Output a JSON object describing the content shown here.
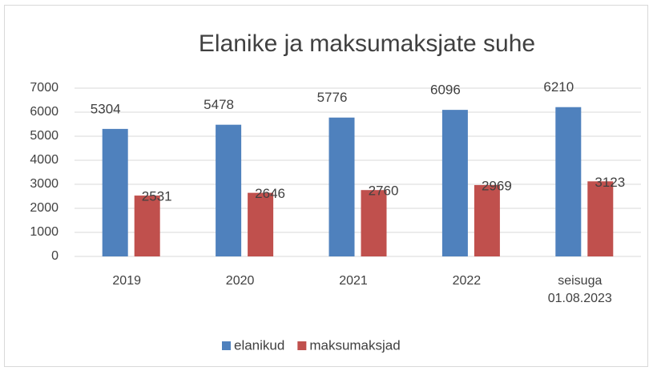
{
  "chart_data": {
    "type": "bar",
    "title": "Elanike ja maksumaksjate suhe",
    "categories": [
      "2019",
      "2020",
      "2021",
      "2022",
      "seisuga 01.08.2023"
    ],
    "series": [
      {
        "name": "elanikud",
        "color": "#4f81bd",
        "values": [
          5304,
          5478,
          5776,
          6096,
          6210
        ]
      },
      {
        "name": "maksumaksjad",
        "color": "#c0504d",
        "values": [
          2531,
          2646,
          2760,
          2969,
          3123
        ]
      }
    ],
    "ylim": [
      0,
      7000
    ],
    "yticks": [
      0,
      1000,
      2000,
      3000,
      4000,
      5000,
      6000,
      7000
    ],
    "grid": true,
    "legend": "bottom"
  }
}
